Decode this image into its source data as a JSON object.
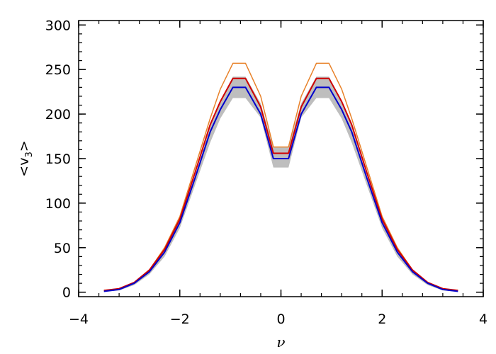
{
  "chart_data": {
    "type": "line",
    "title": "",
    "xlabel": "ν",
    "ylabel": "<v",
    "ylabel_subscript": "3",
    "ylabel_close": ">",
    "xlim": [
      -4,
      4
    ],
    "ylim": [
      -5,
      305
    ],
    "xticks": [
      -4,
      -2,
      0,
      2,
      4
    ],
    "xtick_labels": [
      "−4",
      "−2",
      "0",
      "2",
      "4"
    ],
    "yticks": [
      0,
      50,
      100,
      150,
      200,
      250,
      300
    ],
    "ytick_labels": [
      "0",
      "50",
      "100",
      "150",
      "200",
      "250",
      "300"
    ],
    "x_minor_step": 0.4,
    "y_minor_step": 10,
    "grid": false,
    "legend": "none",
    "x": [
      -3.5,
      -3.2,
      -2.9,
      -2.6,
      -2.3,
      -2.0,
      -1.7,
      -1.4,
      -1.2,
      -0.95,
      -0.7,
      -0.4,
      -0.15,
      0.15,
      0.4,
      0.7,
      0.95,
      1.2,
      1.4,
      1.7,
      2.0,
      2.3,
      2.6,
      2.9,
      3.2,
      3.5
    ],
    "band": {
      "color": "#bebebe",
      "lower": [
        1,
        2,
        8,
        20,
        40,
        72,
        120,
        168,
        195,
        218,
        218,
        196,
        140,
        140,
        196,
        218,
        218,
        195,
        168,
        120,
        72,
        40,
        20,
        8,
        2,
        1
      ],
      "upper": [
        2,
        4,
        11,
        25,
        48,
        80,
        130,
        186,
        215,
        242,
        242,
        212,
        163,
        163,
        212,
        242,
        242,
        215,
        186,
        130,
        80,
        48,
        25,
        11,
        4,
        2
      ]
    },
    "series": [
      {
        "color": "#e8822a",
        "values": [
          2,
          4,
          11,
          25,
          50,
          85,
          140,
          195,
          228,
          257,
          257,
          220,
          163,
          163,
          220,
          257,
          257,
          228,
          195,
          140,
          85,
          50,
          25,
          11,
          4,
          2
        ]
      },
      {
        "color": "#d00000",
        "values": [
          2,
          4,
          11,
          25,
          48,
          82,
          134,
          188,
          214,
          240,
          240,
          208,
          156,
          156,
          208,
          240,
          240,
          214,
          188,
          134,
          82,
          48,
          25,
          11,
          4,
          2
        ]
      },
      {
        "color": "#0000cc",
        "values": [
          1,
          3,
          10,
          23,
          45,
          78,
          128,
          180,
          205,
          230,
          230,
          200,
          150,
          150,
          200,
          230,
          230,
          205,
          180,
          128,
          78,
          45,
          23,
          10,
          3,
          1
        ]
      }
    ]
  }
}
